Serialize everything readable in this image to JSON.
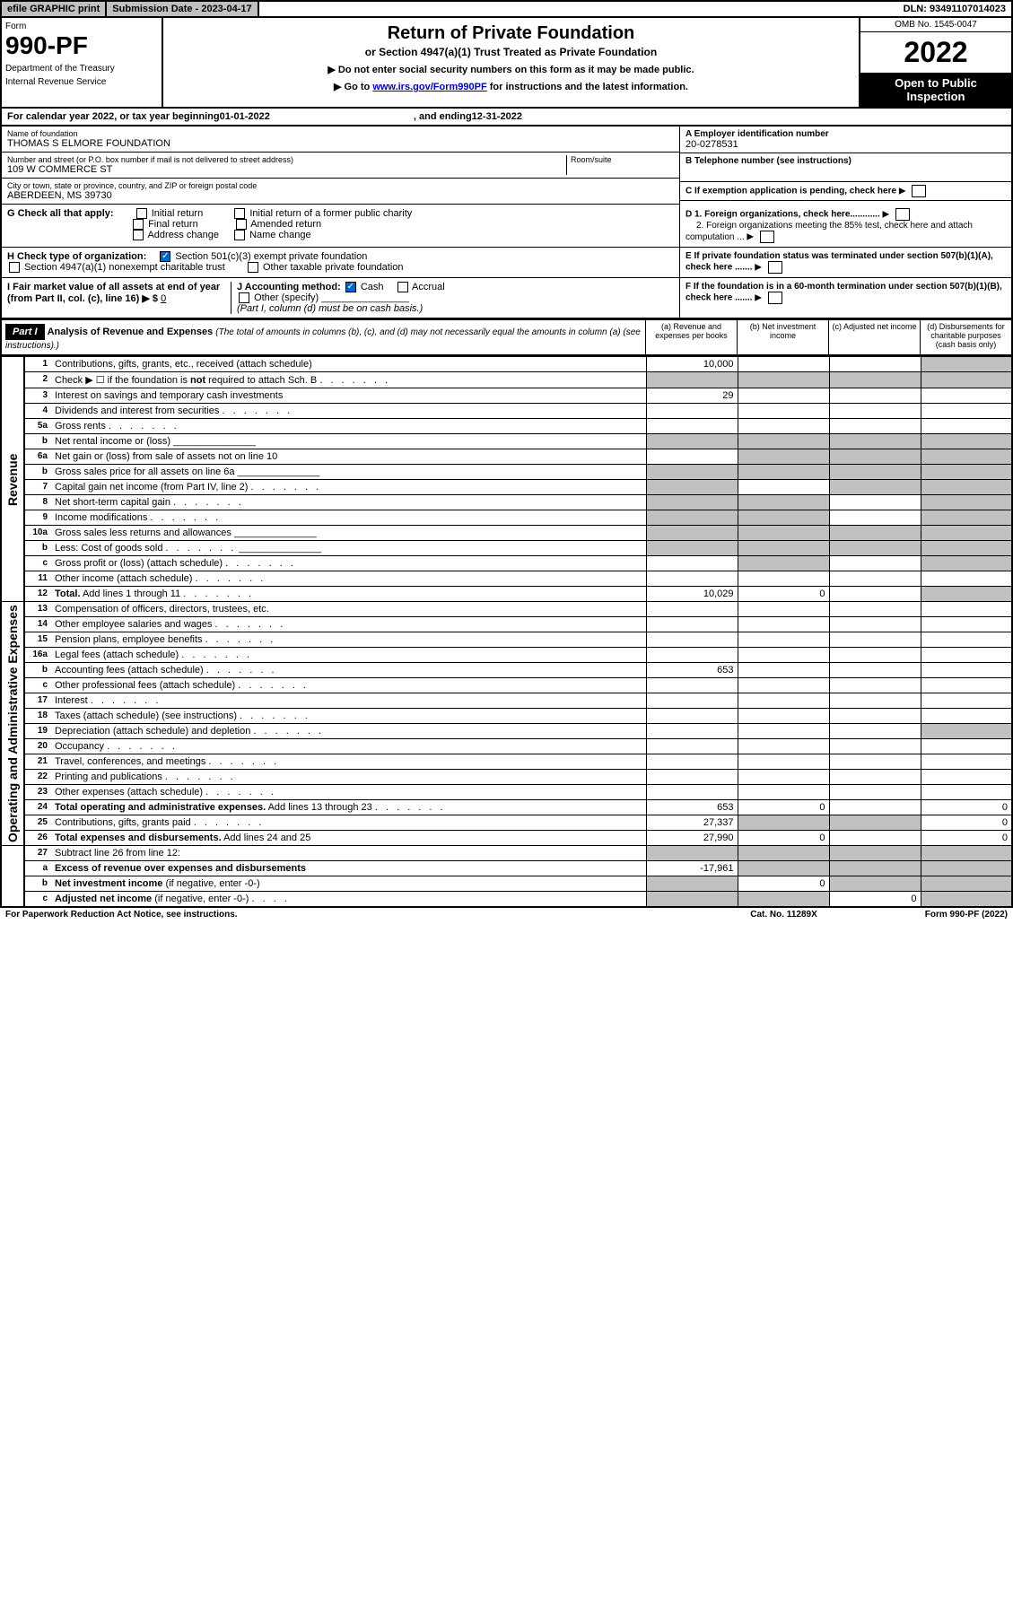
{
  "topbar": {
    "efile": "efile GRAPHIC print",
    "submission_label": "Submission Date - ",
    "submission_date": "2023-04-17",
    "dln_label": "DLN: ",
    "dln": "93491107014023"
  },
  "header": {
    "form_label": "Form",
    "form_num": "990-PF",
    "dept1": "Department of the Treasury",
    "dept2": "Internal Revenue Service",
    "title": "Return of Private Foundation",
    "subtitle": "or Section 4947(a)(1) Trust Treated as Private Foundation",
    "instr1": "▶ Do not enter social security numbers on this form as it may be made public.",
    "instr2_pre": "▶ Go to ",
    "instr2_link": "www.irs.gov/Form990PF",
    "instr2_post": " for instructions and the latest information.",
    "omb": "OMB No. 1545-0047",
    "year": "2022",
    "open": "Open to Public Inspection"
  },
  "calyear": {
    "pre": "For calendar year 2022, or tax year beginning ",
    "begin": "01-01-2022",
    "mid": ", and ending ",
    "end": "12-31-2022"
  },
  "info": {
    "name_label": "Name of foundation",
    "name": "THOMAS S ELMORE FOUNDATION",
    "street_label": "Number and street (or P.O. box number if mail is not delivered to street address)",
    "street": "109 W COMMERCE ST",
    "room_label": "Room/suite",
    "city_label": "City or town, state or province, country, and ZIP or foreign postal code",
    "city": "ABERDEEN, MS  39730",
    "a_label": "A Employer identification number",
    "a_val": "20-0278531",
    "b_label": "B Telephone number (see instructions)",
    "c_label": "C If exemption application is pending, check here",
    "d1_label": "D 1. Foreign organizations, check here............",
    "d2_label": "2. Foreign organizations meeting the 85% test, check here and attach computation ...",
    "e_label": "E  If private foundation status was terminated under section 507(b)(1)(A), check here .......",
    "f_label": "F  If the foundation is in a 60-month termination under section 507(b)(1)(B), check here .......",
    "g_label": "G Check all that apply:",
    "g_opts": [
      "Initial return",
      "Initial return of a former public charity",
      "Final return",
      "Amended return",
      "Address change",
      "Name change"
    ],
    "h_label": "H Check type of organization:",
    "h1": "Section 501(c)(3) exempt private foundation",
    "h2": "Section 4947(a)(1) nonexempt charitable trust",
    "h3": "Other taxable private foundation",
    "i_label": "I Fair market value of all assets at end of year (from Part II, col. (c), line 16) ▶ $",
    "i_val": "0",
    "j_label": "J Accounting method:",
    "j_cash": "Cash",
    "j_accrual": "Accrual",
    "j_other": "Other (specify)",
    "j_note": "(Part I, column (d) must be on cash basis.)"
  },
  "part1": {
    "head": "Part I",
    "title": "Analysis of Revenue and Expenses",
    "desc": "(The total of amounts in columns (b), (c), and (d) may not necessarily equal the amounts in column (a) (see instructions).)",
    "col_a": "(a)  Revenue and expenses per books",
    "col_b": "(b)  Net investment income",
    "col_c": "(c)  Adjusted net income",
    "col_d": "(d)  Disbursements for charitable purposes (cash basis only)"
  },
  "side_labels": {
    "revenue": "Revenue",
    "expenses": "Operating and Administrative Expenses"
  },
  "rows": [
    {
      "n": "1",
      "d": "Contributions, gifts, grants, etc., received (attach schedule)",
      "a": "10,000",
      "greyD": true
    },
    {
      "n": "2",
      "d": "Check ▶ ☐ if the foundation is <b>not</b> required to attach Sch. B",
      "dots": true,
      "greyA": true,
      "greyB": true,
      "greyC": true,
      "greyD": true
    },
    {
      "n": "3",
      "d": "Interest on savings and temporary cash investments",
      "a": "29"
    },
    {
      "n": "4",
      "d": "Dividends and interest from securities",
      "dots": true
    },
    {
      "n": "5a",
      "d": "Gross rents",
      "dots": true
    },
    {
      "n": "b",
      "d": "Net rental income or (loss)",
      "inline": true,
      "greyA": true,
      "greyB": true,
      "greyC": true,
      "greyD": true
    },
    {
      "n": "6a",
      "d": "Net gain or (loss) from sale of assets not on line 10",
      "greyB": true,
      "greyC": true,
      "greyD": true
    },
    {
      "n": "b",
      "d": "Gross sales price for all assets on line 6a",
      "inline": true,
      "greyA": true,
      "greyB": true,
      "greyC": true,
      "greyD": true
    },
    {
      "n": "7",
      "d": "Capital gain net income (from Part IV, line 2)",
      "dots": true,
      "greyA": true,
      "greyC": true,
      "greyD": true
    },
    {
      "n": "8",
      "d": "Net short-term capital gain",
      "dots": true,
      "greyA": true,
      "greyB": true,
      "greyD": true
    },
    {
      "n": "9",
      "d": "Income modifications",
      "dots": true,
      "greyA": true,
      "greyB": true,
      "greyD": true
    },
    {
      "n": "10a",
      "d": "Gross sales less returns and allowances",
      "inline": true,
      "greyA": true,
      "greyB": true,
      "greyC": true,
      "greyD": true
    },
    {
      "n": "b",
      "d": "Less: Cost of goods sold",
      "dots": true,
      "inline": true,
      "greyA": true,
      "greyB": true,
      "greyC": true,
      "greyD": true
    },
    {
      "n": "c",
      "d": "Gross profit or (loss) (attach schedule)",
      "dots": true,
      "greyB": true,
      "greyD": true
    },
    {
      "n": "11",
      "d": "Other income (attach schedule)",
      "dots": true
    },
    {
      "n": "12",
      "d": "<b>Total.</b> Add lines 1 through 11",
      "dots": true,
      "a": "10,029",
      "b": "0",
      "greyD": true
    }
  ],
  "exp_rows": [
    {
      "n": "13",
      "d": "Compensation of officers, directors, trustees, etc."
    },
    {
      "n": "14",
      "d": "Other employee salaries and wages",
      "dots": true
    },
    {
      "n": "15",
      "d": "Pension plans, employee benefits",
      "dots": true
    },
    {
      "n": "16a",
      "d": "Legal fees (attach schedule)",
      "dots": true
    },
    {
      "n": "b",
      "d": "Accounting fees (attach schedule)",
      "dots": true,
      "a": "653"
    },
    {
      "n": "c",
      "d": "Other professional fees (attach schedule)",
      "dots": true
    },
    {
      "n": "17",
      "d": "Interest",
      "dots": true
    },
    {
      "n": "18",
      "d": "Taxes (attach schedule) (see instructions)",
      "dots": true
    },
    {
      "n": "19",
      "d": "Depreciation (attach schedule) and depletion",
      "dots": true,
      "greyD": true
    },
    {
      "n": "20",
      "d": "Occupancy",
      "dots": true
    },
    {
      "n": "21",
      "d": "Travel, conferences, and meetings",
      "dots": true
    },
    {
      "n": "22",
      "d": "Printing and publications",
      "dots": true
    },
    {
      "n": "23",
      "d": "Other expenses (attach schedule)",
      "dots": true
    },
    {
      "n": "24",
      "d": "<b>Total operating and administrative expenses.</b> Add lines 13 through 23",
      "dots": true,
      "a": "653",
      "b": "0",
      "dv": "0"
    },
    {
      "n": "25",
      "d": "Contributions, gifts, grants paid",
      "dots": true,
      "a": "27,337",
      "greyB": true,
      "greyC": true,
      "dv": "0"
    },
    {
      "n": "26",
      "d": "<b>Total expenses and disbursements.</b> Add lines 24 and 25",
      "a": "27,990",
      "b": "0",
      "dv": "0"
    }
  ],
  "net_rows": [
    {
      "n": "27",
      "d": "Subtract line 26 from line 12:",
      "greyA": true,
      "greyB": true,
      "greyC": true,
      "greyD": true
    },
    {
      "n": "a",
      "d": "<b>Excess of revenue over expenses and disbursements</b>",
      "a": "-17,961",
      "greyB": true,
      "greyC": true,
      "greyD": true
    },
    {
      "n": "b",
      "d": "<b>Net investment income</b> (if negative, enter -0-)",
      "greyA": true,
      "b": "0",
      "greyC": true,
      "greyD": true
    },
    {
      "n": "c",
      "d": "<b>Adjusted net income</b> (if negative, enter -0-)",
      "dots": true,
      "greyA": true,
      "greyB": true,
      "c": "0",
      "greyD": true
    }
  ],
  "footer": {
    "left": "For Paperwork Reduction Act Notice, see instructions.",
    "mid": "Cat. No. 11289X",
    "right": "Form 990-PF (2022)"
  },
  "colors": {
    "grey": "#c0c0c0",
    "link": "#0000cc",
    "check": "#0066cc"
  }
}
